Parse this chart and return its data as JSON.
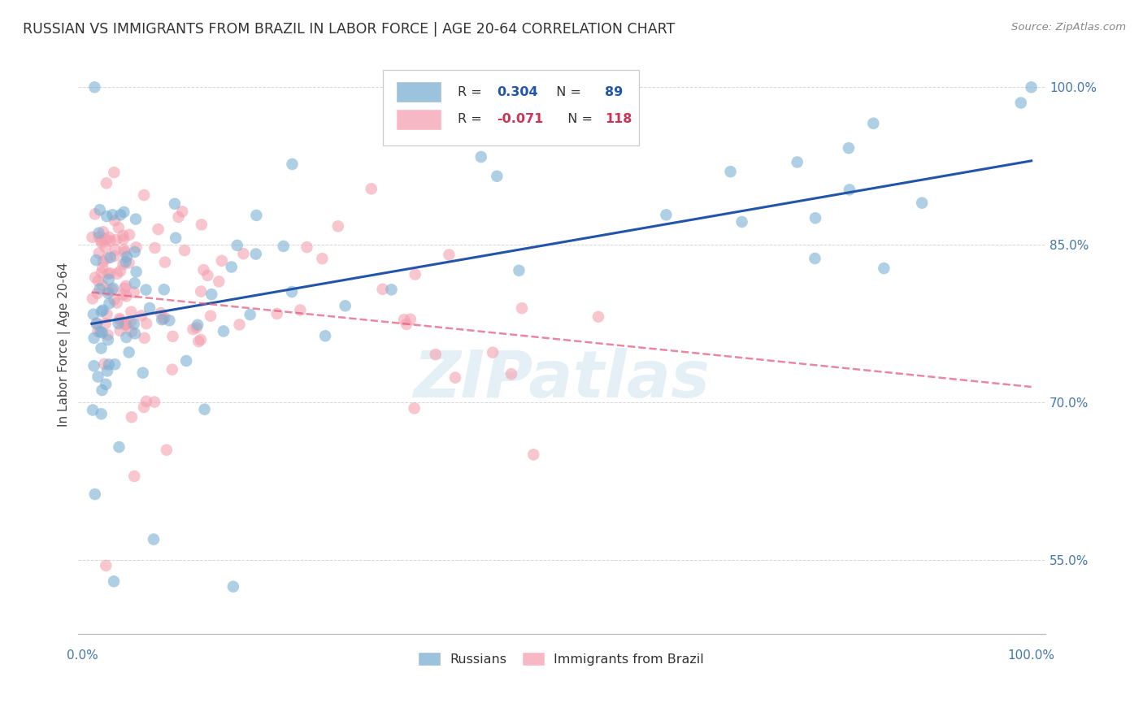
{
  "title": "RUSSIAN VS IMMIGRANTS FROM BRAZIL IN LABOR FORCE | AGE 20-64 CORRELATION CHART",
  "source": "Source: ZipAtlas.com",
  "ylabel": "In Labor Force | Age 20-64",
  "y_ticks": [
    55.0,
    70.0,
    85.0,
    100.0
  ],
  "russians_color": "#7BAFD4",
  "brazil_color": "#F4A0B0",
  "trendline_russian_color": "#2255AA",
  "trendline_brazil_color": "#E06080",
  "watermark": "ZIPatlas",
  "background_color": "#FFFFFF",
  "grid_color": "#CCCCCC",
  "title_color": "#333333",
  "axis_color": "#4477AA",
  "r_rus": 0.304,
  "n_rus": 89,
  "r_bra": -0.071,
  "n_bra": 118,
  "rus_trend_x0": 0,
  "rus_trend_y0": 77.5,
  "rus_trend_x1": 100,
  "rus_trend_y1": 93.0,
  "bra_trend_x0": 0,
  "bra_trend_y0": 80.5,
  "bra_trend_x1": 100,
  "bra_trend_y1": 71.5,
  "xlim": [
    0,
    100
  ],
  "ylim": [
    48,
    103
  ]
}
